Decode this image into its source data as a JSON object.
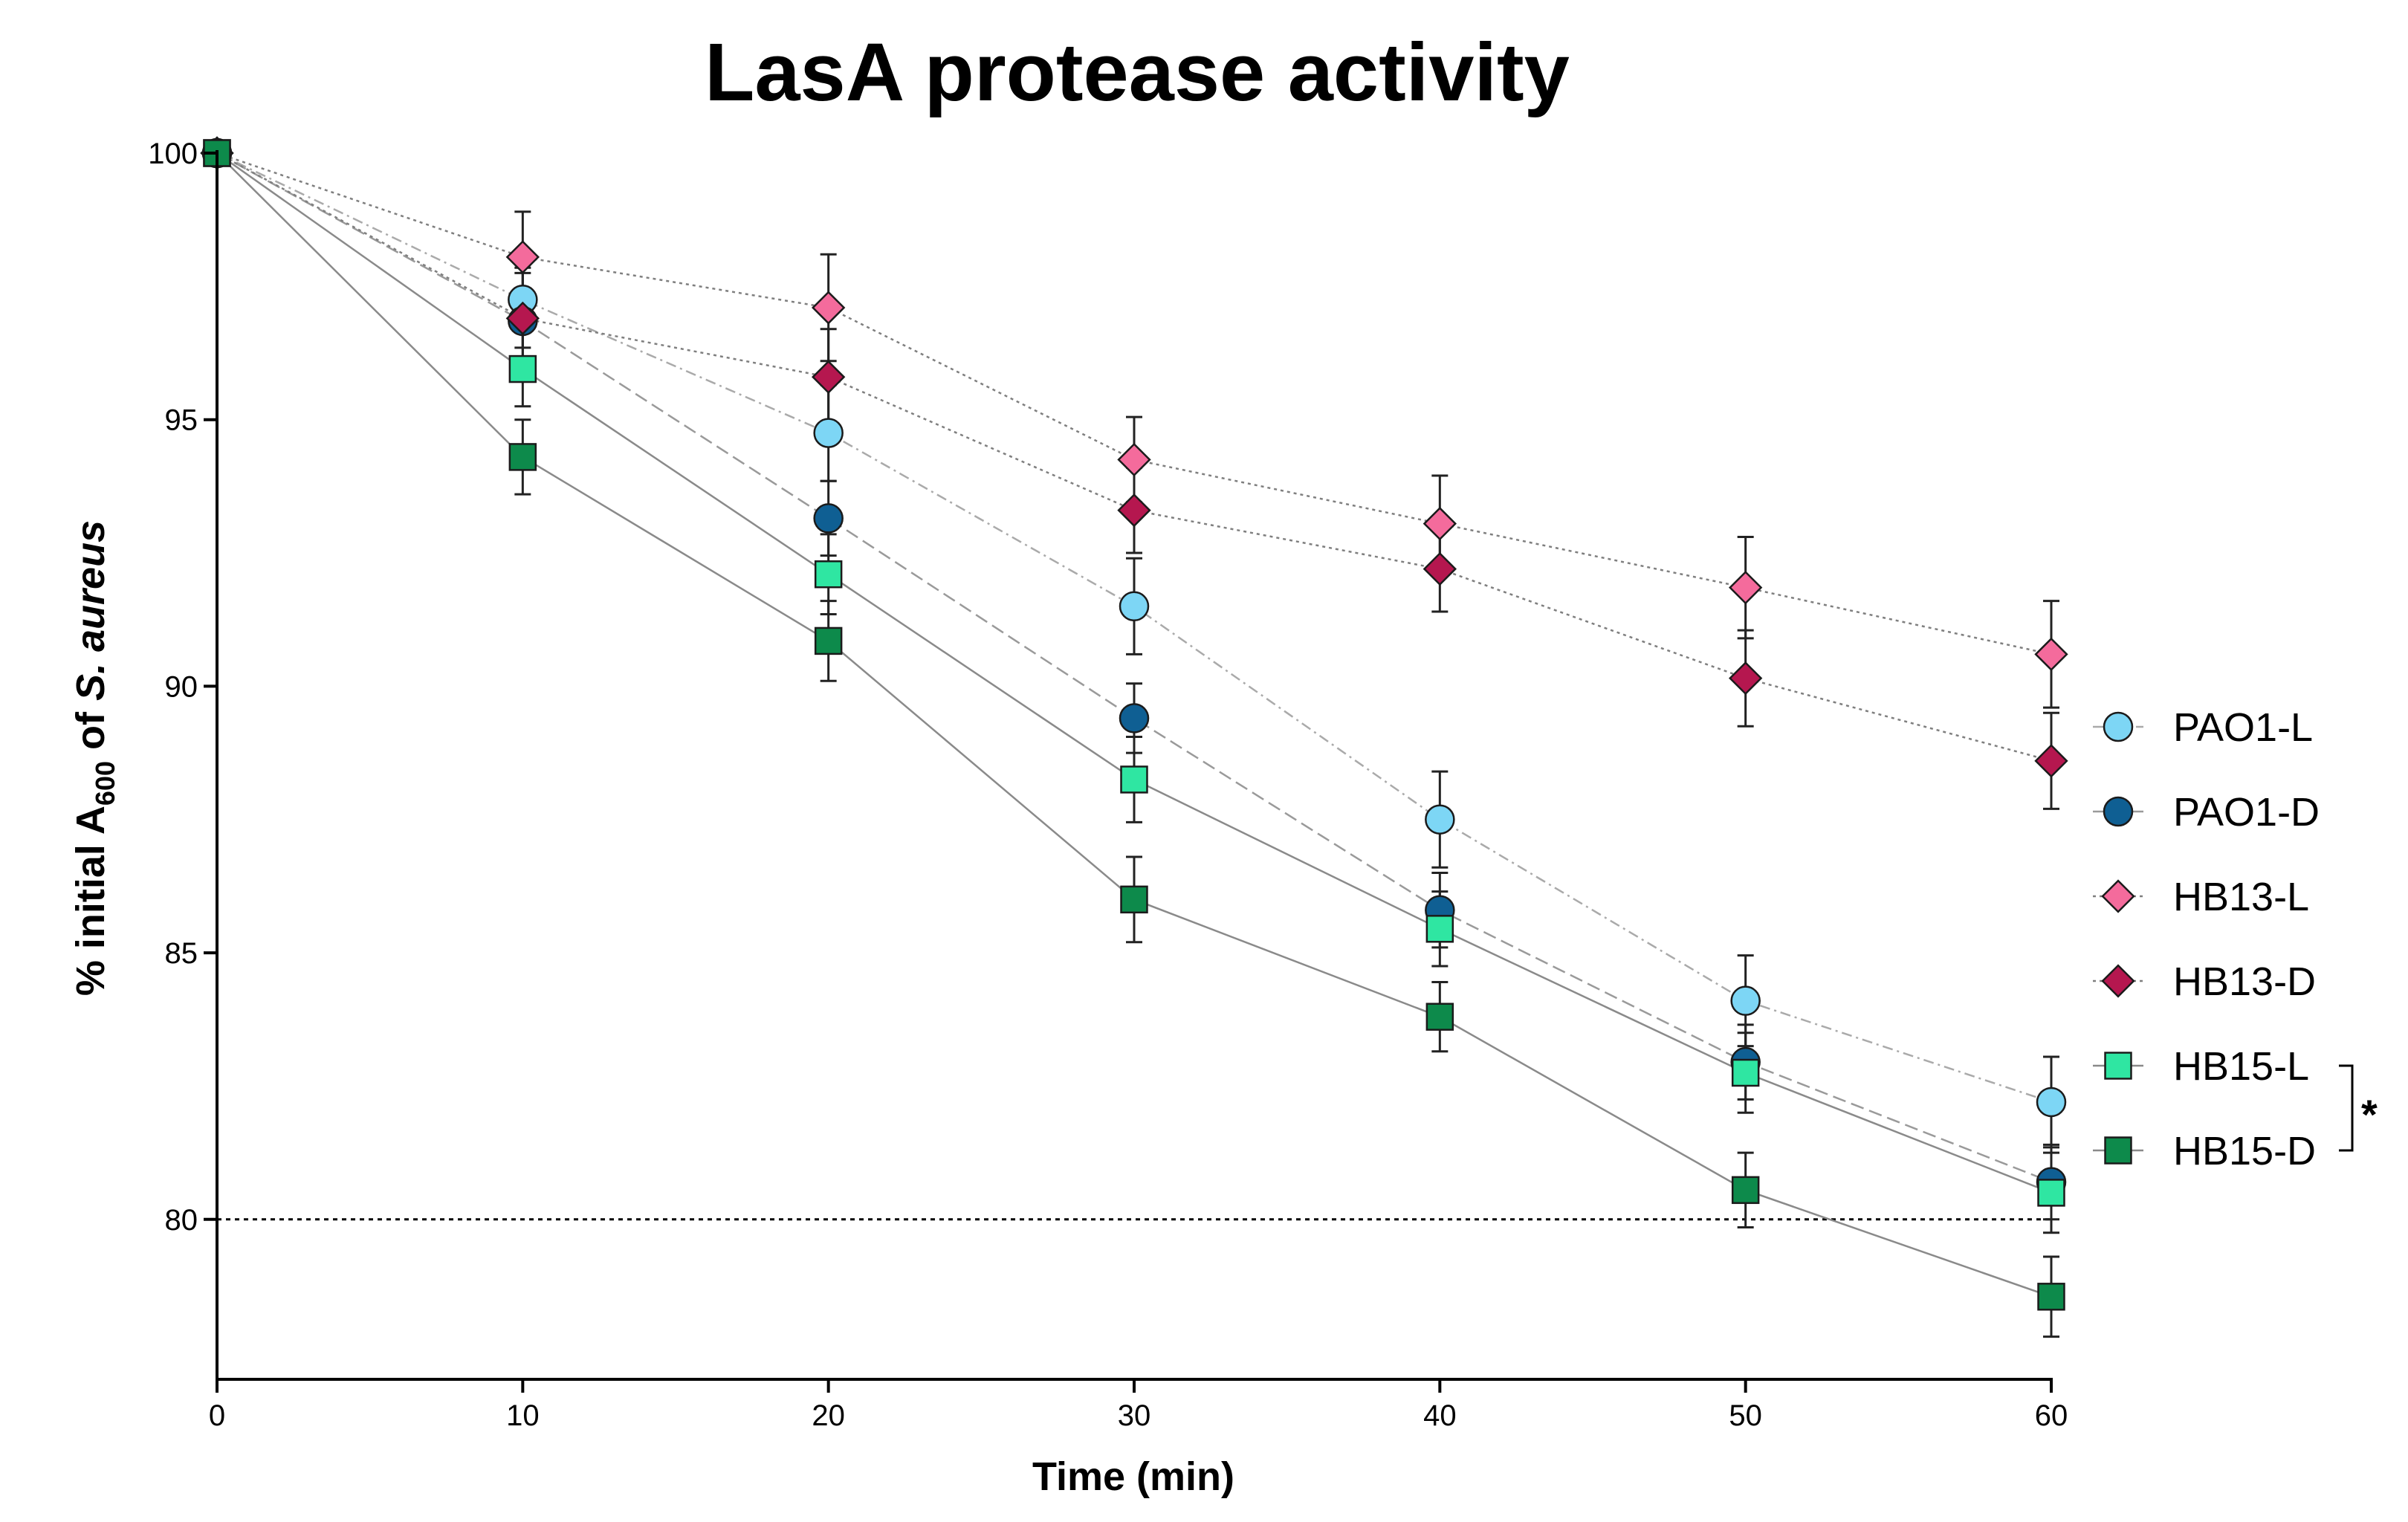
{
  "chart_data": {
    "type": "line",
    "title": "LasA protease activity",
    "xlabel": "Time (min)",
    "ylabel": {
      "prefix": "% initial A",
      "subscript": "600",
      "middle": " of ",
      "italic": "S. aureus"
    },
    "x": [
      0,
      10,
      20,
      30,
      40,
      50,
      60
    ],
    "xticks": [
      "0",
      "10",
      "20",
      "30",
      "40",
      "50",
      "60"
    ],
    "yticks": [
      "80",
      "85",
      "90",
      "95",
      "100"
    ],
    "xlim": [
      0,
      60
    ],
    "ylim": [
      77.0,
      100
    ],
    "reference_line": {
      "y": 80,
      "style": "dotted"
    },
    "series": [
      {
        "name": "PAO1-L",
        "marker": "circle",
        "color": "#7dd6f5",
        "line": "dashdot",
        "values": [
          100,
          97.25,
          94.75,
          91.5,
          87.5,
          84.1,
          82.2
        ],
        "errors": [
          0,
          0.6,
          0.9,
          0.9,
          0.9,
          0.85,
          0.85
        ]
      },
      {
        "name": "PAO1-D",
        "marker": "circle",
        "color": "#0f5f93",
        "line": "dashed",
        "values": [
          100,
          96.85,
          93.15,
          89.4,
          85.8,
          82.95,
          80.7
        ],
        "errors": [
          0,
          0.5,
          0.7,
          0.65,
          0.7,
          0.7,
          0.7
        ]
      },
      {
        "name": "HB13-L",
        "marker": "diamond",
        "color": "#f46b9c",
        "line": "dotted",
        "values": [
          100,
          98.05,
          97.1,
          94.25,
          93.05,
          91.85,
          90.6
        ],
        "errors": [
          0,
          0.85,
          1.0,
          0.8,
          0.9,
          0.95,
          1.0
        ]
      },
      {
        "name": "HB13-D",
        "marker": "diamond",
        "color": "#b5174f",
        "line": "dotted",
        "values": [
          100,
          96.9,
          95.8,
          93.3,
          92.2,
          90.15,
          88.6
        ],
        "errors": [
          0,
          0.85,
          0.9,
          0.8,
          0.8,
          0.9,
          0.9
        ]
      },
      {
        "name": "HB15-L",
        "marker": "square",
        "color": "#2fe6a2",
        "line": "solid",
        "values": [
          100,
          95.95,
          92.1,
          88.25,
          85.45,
          82.75,
          80.5
        ],
        "errors": [
          0,
          0.7,
          0.75,
          0.8,
          0.7,
          0.75,
          0.75
        ]
      },
      {
        "name": "HB15-D",
        "marker": "square",
        "color": "#0d8a4b",
        "line": "solid",
        "values": [
          100,
          94.3,
          90.85,
          86.0,
          83.8,
          80.55,
          78.55
        ],
        "errors": [
          0,
          0.7,
          0.75,
          0.8,
          0.65,
          0.7,
          0.75
        ]
      }
    ],
    "significance": {
      "label": "*",
      "series": [
        "HB15-L",
        "HB15-D"
      ]
    },
    "legend_position": "right",
    "grid": false
  }
}
